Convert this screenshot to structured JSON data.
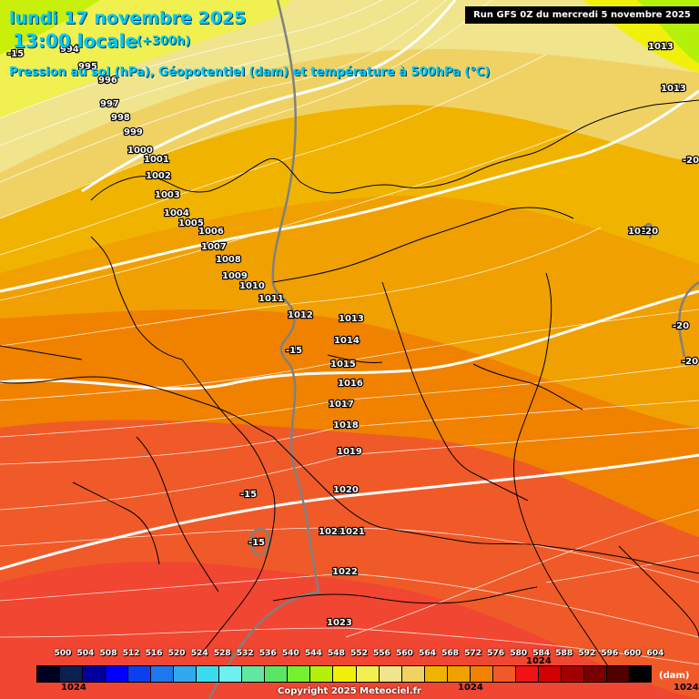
{
  "header": {
    "date": "lundi 17 novembre 2025",
    "time": "13:00 locale",
    "offset": "(+300h)",
    "description": "Pression au sol (hPa), Géopotentiel (dam) et température à 500hPa (°C)",
    "run": "Run GFS 0Z du mercredi 5 novembre 2025"
  },
  "legend": {
    "unit": "(dam)",
    "values": [
      "500",
      "504",
      "508",
      "512",
      "516",
      "520",
      "524",
      "528",
      "532",
      "536",
      "540",
      "544",
      "548",
      "552",
      "556",
      "560",
      "564",
      "568",
      "572",
      "576",
      "580",
      "584",
      "588",
      "592",
      "596",
      "600",
      "604"
    ],
    "colors": [
      "#000020",
      "#0a2050",
      "#0000a0",
      "#0000ff",
      "#0a40f0",
      "#1e78f0",
      "#32a8f0",
      "#3cdcf0",
      "#6ef0f0",
      "#64e6a0",
      "#5ae664",
      "#78f032",
      "#b4f00a",
      "#f0f00a",
      "#f0f050",
      "#f0e48c",
      "#f0d264",
      "#f0b400",
      "#f0a000",
      "#f08200",
      "#f05a28",
      "#f01414",
      "#d20000",
      "#a00000",
      "#780000",
      "#500000",
      "#000000"
    ]
  },
  "map_labels": {
    "isobars": [
      {
        "v": "994"
      },
      {
        "v": "995"
      },
      {
        "v": "996"
      },
      {
        "v": "997"
      },
      {
        "v": "998"
      },
      {
        "v": "999"
      },
      {
        "v": "1000"
      },
      {
        "v": "1001"
      },
      {
        "v": "1002"
      },
      {
        "v": "1003"
      },
      {
        "v": "1004"
      },
      {
        "v": "1005"
      },
      {
        "v": "1006"
      },
      {
        "v": "1007"
      },
      {
        "v": "1008"
      },
      {
        "v": "1009"
      },
      {
        "v": "1010"
      },
      {
        "v": "1011"
      },
      {
        "v": "1012"
      },
      {
        "v": "1013"
      },
      {
        "v": "1014"
      },
      {
        "v": "1015"
      },
      {
        "v": "1016"
      },
      {
        "v": "1017"
      },
      {
        "v": "1018"
      },
      {
        "v": "1019"
      },
      {
        "v": "1020"
      },
      {
        "v": "1021"
      },
      {
        "v": "1021"
      },
      {
        "v": "1022"
      },
      {
        "v": "1023"
      },
      {
        "v": "1013"
      },
      {
        "v": "1013"
      },
      {
        "v": "1019"
      }
    ],
    "temps": [
      {
        "v": "-15"
      },
      {
        "v": "-15"
      },
      {
        "v": "-15"
      },
      {
        "v": "-15"
      },
      {
        "v": "-20"
      },
      {
        "v": "-20"
      },
      {
        "v": "-20"
      },
      {
        "v": "-20"
      }
    ],
    "footer": [
      "1024",
      "1024",
      "1024",
      "1024"
    ]
  },
  "copyright": "Copyright 2025 Meteociel.fr"
}
